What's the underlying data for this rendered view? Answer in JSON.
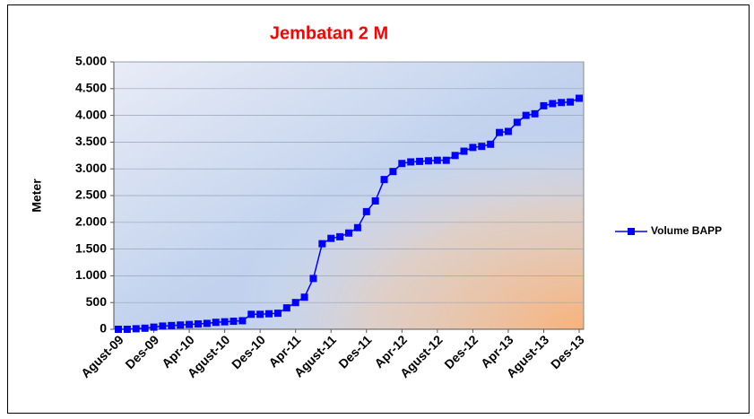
{
  "chart_data": {
    "type": "line",
    "title": "Jembatan 2 M",
    "y_label": "Meter",
    "categories": [
      "Agust-09",
      null,
      null,
      null,
      "Des-09",
      null,
      null,
      null,
      "Apr-10",
      null,
      null,
      null,
      "Agust-10",
      null,
      null,
      null,
      "Des-10",
      null,
      null,
      null,
      "Apr-11",
      null,
      null,
      null,
      "Agust-11",
      null,
      null,
      null,
      "Des-11",
      null,
      null,
      null,
      "Apr-12",
      null,
      null,
      null,
      "Agust-12",
      null,
      null,
      null,
      "Des-12",
      null,
      null,
      null,
      "Apr-13",
      null,
      null,
      null,
      "Agust-13",
      null,
      null,
      null,
      "Des-13"
    ],
    "series": [
      {
        "name": "Volume BAPP",
        "color": "#0000ff",
        "values": [
          0,
          0,
          10,
          20,
          40,
          60,
          70,
          80,
          90,
          100,
          110,
          130,
          140,
          150,
          160,
          280,
          280,
          290,
          300,
          400,
          500,
          600,
          950,
          1600,
          1700,
          1730,
          1800,
          1900,
          2200,
          2400,
          2800,
          2950,
          3100,
          3130,
          3140,
          3150,
          3160,
          3160,
          3250,
          3330,
          3400,
          3420,
          3460,
          3680,
          3700,
          3870,
          4000,
          4030,
          4180,
          4220,
          4240,
          4250,
          4320
        ]
      }
    ],
    "ylim": [
      0,
      5000
    ],
    "yticks": [
      0,
      500,
      {
        "value": 1000,
        "label": "1.000"
      },
      {
        "value": 1500,
        "label": "1.500"
      },
      {
        "value": 2000,
        "label": "2.000"
      },
      {
        "value": 2500,
        "label": "2.500"
      },
      {
        "value": 3000,
        "label": "3.000"
      },
      {
        "value": 3500,
        "label": "3.500"
      },
      {
        "value": 4000,
        "label": "4.000"
      },
      {
        "value": 4500,
        "label": "4.500"
      },
      {
        "value": 5000,
        "label": "5.000"
      }
    ],
    "grid": true,
    "legend": "right"
  }
}
